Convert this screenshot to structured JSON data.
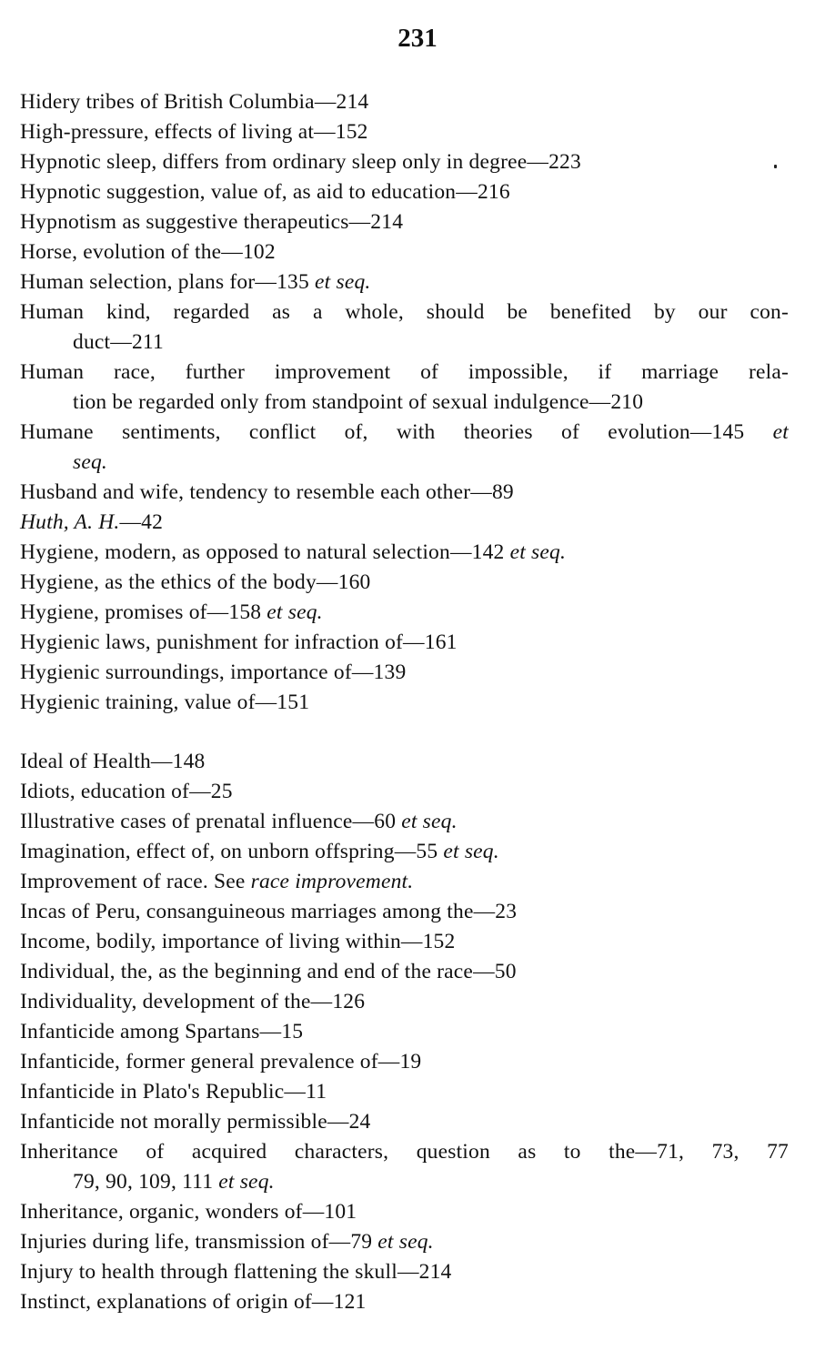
{
  "page_number": "231",
  "sections": [
    {
      "entries": [
        [
          [
            {
              "t": "Hidery tribes of British Columbia—214"
            }
          ]
        ],
        [
          [
            {
              "t": "High-pressure, effects of living at—152"
            }
          ]
        ],
        [
          [
            {
              "t": "Hypnotic sleep, differs from ordinary sleep only in degree—223"
            }
          ]
        ],
        [
          [
            {
              "t": "Hypnotic suggestion, value of, as aid to education—216"
            }
          ]
        ],
        [
          [
            {
              "t": "Hypnotism as suggestive therapeutics—214"
            }
          ]
        ],
        [
          [
            {
              "t": "Horse, evolution of the—102"
            }
          ]
        ],
        [
          [
            {
              "t": "Human selection, plans for—135 "
            },
            {
              "t": "et seq.",
              "i": true
            }
          ]
        ],
        [
          [
            {
              "t": "Human kind, regarded as a whole, should be benefited by our con-"
            }
          ],
          [
            {
              "t": "duct—211"
            }
          ]
        ],
        [
          [
            {
              "t": "Human race, further improvement of impossible, if marriage rela-"
            }
          ],
          [
            {
              "t": "tion be regarded only from standpoint of sexual indulgence—210"
            }
          ]
        ],
        [
          [
            {
              "t": "Humane sentiments, conflict of, with theories of evolution—145 "
            },
            {
              "t": "et",
              "i": true
            }
          ],
          [
            {
              "t": "seq.",
              "i": true
            }
          ]
        ],
        [
          [
            {
              "t": "Husband and wife, tendency to resemble each other—89"
            }
          ]
        ],
        [
          [
            {
              "t": "Huth, A. H.",
              "i": true
            },
            {
              "t": "—42"
            }
          ]
        ],
        [
          [
            {
              "t": "Hygiene, modern, as opposed to natural selection—142 "
            },
            {
              "t": "et seq.",
              "i": true
            }
          ]
        ],
        [
          [
            {
              "t": "Hygiene, as the ethics of the body—160"
            }
          ]
        ],
        [
          [
            {
              "t": "Hygiene, promises of—158 "
            },
            {
              "t": "et seq.",
              "i": true
            }
          ]
        ],
        [
          [
            {
              "t": "Hygienic laws, punishment for infraction of—161"
            }
          ]
        ],
        [
          [
            {
              "t": "Hygienic surroundings, importance of—139"
            }
          ]
        ],
        [
          [
            {
              "t": "Hygienic training, value of—151"
            }
          ]
        ]
      ]
    },
    {
      "entries": [
        [
          [
            {
              "t": "Ideal of Health—148"
            }
          ]
        ],
        [
          [
            {
              "t": "Idiots, education of—25"
            }
          ]
        ],
        [
          [
            {
              "t": "Illustrative cases of prenatal influence—60 "
            },
            {
              "t": "et seq.",
              "i": true
            }
          ]
        ],
        [
          [
            {
              "t": "Imagination, effect of, on unborn offspring—55 "
            },
            {
              "t": "et seq.",
              "i": true
            }
          ]
        ],
        [
          [
            {
              "t": "Improvement of race.   See "
            },
            {
              "t": "race improvement.",
              "i": true
            }
          ]
        ],
        [
          [
            {
              "t": "Incas of Peru, consanguineous marriages among the—23"
            }
          ]
        ],
        [
          [
            {
              "t": "Income, bodily, importance of living within—152"
            }
          ]
        ],
        [
          [
            {
              "t": "Individual, the, as the beginning and end of the race—50"
            }
          ]
        ],
        [
          [
            {
              "t": "Individuality, development of the—126"
            }
          ]
        ],
        [
          [
            {
              "t": "Infanticide among Spartans—15"
            }
          ]
        ],
        [
          [
            {
              "t": "Infanticide, former general prevalence of—19"
            }
          ]
        ],
        [
          [
            {
              "t": "Infanticide in Plato's Republic—11"
            }
          ]
        ],
        [
          [
            {
              "t": "Infanticide not morally permissible—24"
            }
          ]
        ],
        [
          [
            {
              "t": "Inheritance of acquired characters, question as to the—71, 73, 77"
            }
          ],
          [
            {
              "t": "79, 90, 109, 111 "
            },
            {
              "t": "et seq.",
              "i": true
            }
          ]
        ],
        [
          [
            {
              "t": "Inheritance, organic, wonders of—101"
            }
          ]
        ],
        [
          [
            {
              "t": "Injuries during life, transmission of—79 "
            },
            {
              "t": "et seq.",
              "i": true
            }
          ]
        ],
        [
          [
            {
              "t": "Injury to health through flattening the skull—214"
            }
          ]
        ],
        [
          [
            {
              "t": "Instinct, explanations of origin of—121"
            }
          ]
        ]
      ]
    }
  ]
}
